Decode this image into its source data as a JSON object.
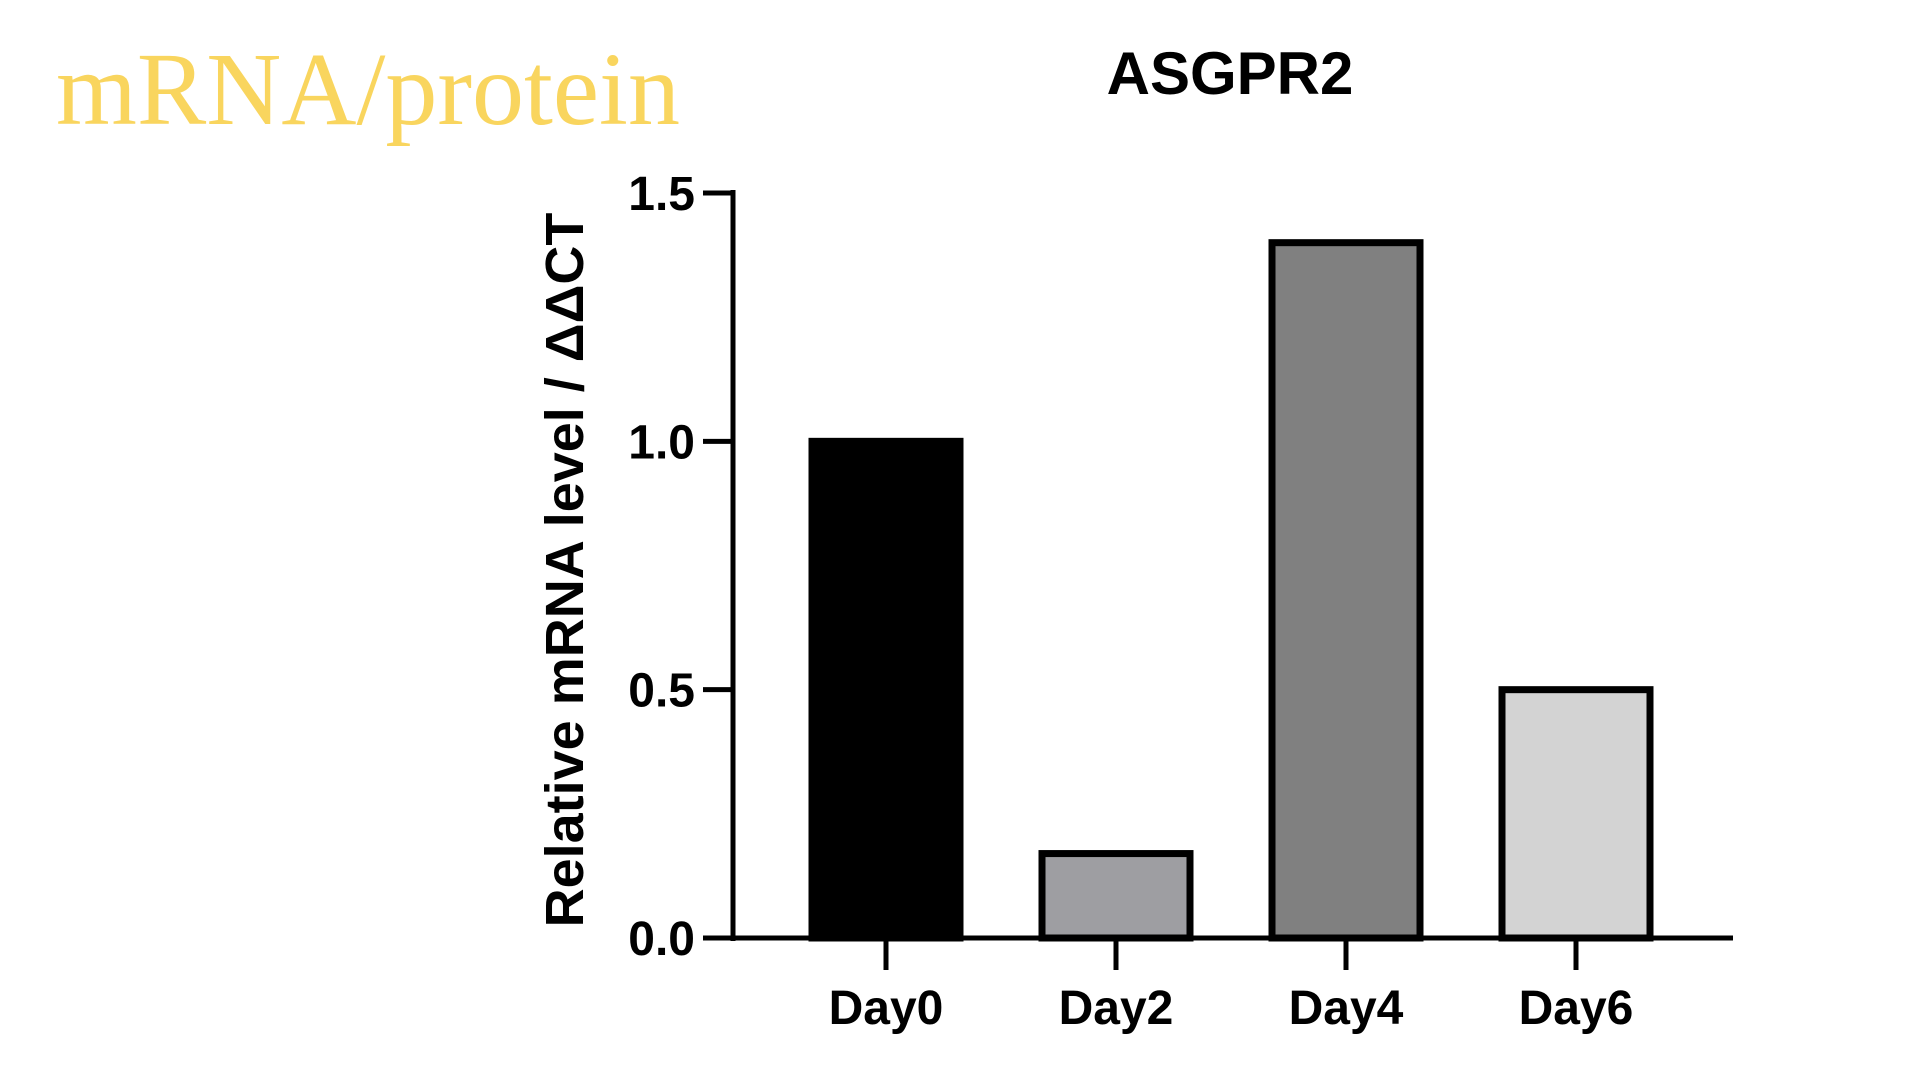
{
  "slide": {
    "heading": "mRNA/protein",
    "heading_color": "#f9d55e"
  },
  "chart_data": {
    "type": "bar",
    "title": "ASGPR2",
    "ylabel": "Relative mRNA level / ΔΔCT",
    "xlabel": "",
    "categories": [
      "Day0",
      "Day2",
      "Day4",
      "Day6"
    ],
    "values": [
      1.0,
      0.17,
      1.4,
      0.5
    ],
    "bar_colors": [
      "#000000",
      "#9e9ea2",
      "#808080",
      "#d3d3d3"
    ],
    "ylim": [
      0,
      1.5
    ],
    "yticks": [
      0.0,
      0.5,
      1.0,
      1.5
    ],
    "ytick_labels": [
      "0.0",
      "0.5",
      "1.0",
      "1.5"
    ],
    "grid": false,
    "legend": "none"
  }
}
